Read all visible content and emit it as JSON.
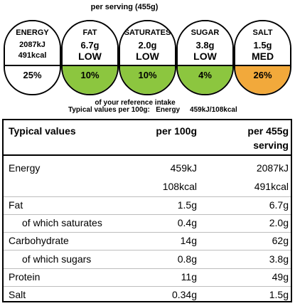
{
  "label": {
    "serving_header": "per serving  (455g)",
    "segments": [
      {
        "name": "ENERGY",
        "kj": "2087kJ",
        "kcal": "491kcal",
        "percent": "25%",
        "color": "#ffffff"
      },
      {
        "name": "FAT",
        "amount": "6.7g",
        "level": "LOW",
        "percent": "10%",
        "color": "#8cc63f"
      },
      {
        "name": "SATURATES",
        "amount": "2.0g",
        "level": "LOW",
        "percent": "10%",
        "color": "#8cc63f"
      },
      {
        "name": "SUGAR",
        "amount": "3.8g",
        "level": "LOW",
        "percent": "4%",
        "color": "#8cc63f"
      },
      {
        "name": "SALT",
        "amount": "1.5g",
        "level": "MED",
        "percent": "26%",
        "color": "#f2a93b"
      }
    ],
    "ri_caption": "of your reference intake",
    "typical_label": "Typical values per 100g:",
    "typical_energy_label": "Energy",
    "typical_energy_value": "459kJ/108kcal"
  },
  "table": {
    "headers": {
      "col1": "Typical values",
      "col2": "per 100g",
      "col3_line1": "per 455g",
      "col3_line2": "serving"
    },
    "rows": [
      {
        "label": "Energy",
        "per100": "459kJ",
        "perServing": "2087kJ"
      },
      {
        "label": "",
        "per100": "108kcal",
        "perServing": "491kcal"
      },
      {
        "label": "Fat",
        "per100": "1.5g",
        "perServing": "6.7g"
      },
      {
        "label": "of which saturates",
        "per100": "0.4g",
        "perServing": "2.0g"
      },
      {
        "label": "Carbohydrate",
        "per100": "14g",
        "perServing": "62g"
      },
      {
        "label": "of which sugars",
        "per100": "0.8g",
        "perServing": "3.8g"
      },
      {
        "label": "Protein",
        "per100": "11g",
        "perServing": "49g"
      },
      {
        "label": "Salt",
        "per100": "0.34g",
        "perServing": "1.5g"
      }
    ]
  }
}
